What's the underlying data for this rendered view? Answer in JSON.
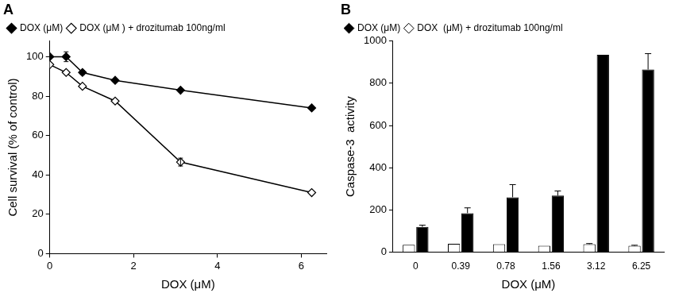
{
  "chart_data": [
    {
      "type": "line",
      "title": "A",
      "x": [
        0,
        0.39,
        0.78,
        1.56,
        3.12,
        6.25
      ],
      "x_label": "DOX (μM)",
      "y_label": "Cell survival (% of control)",
      "series": [
        {
          "name": "DOX (μM)",
          "color": "#000000",
          "marker": "diamond",
          "values": [
            100,
            100,
            92,
            88,
            83,
            74
          ],
          "errors": [
            0,
            2.5,
            1,
            0,
            0,
            0
          ]
        },
        {
          "name": "DOX (μM ) + drozitumab 100ng/ml",
          "color": "#ffffff",
          "marker": "diamond",
          "values": [
            96,
            92,
            85,
            77.5,
            46.5,
            31
          ],
          "errors": [
            0,
            0,
            0,
            0,
            2,
            0
          ]
        }
      ],
      "xlim": [
        0,
        6.6
      ],
      "xticks": [
        0,
        2,
        4,
        6
      ],
      "ylim": [
        0,
        108
      ],
      "yticks": [
        0,
        20,
        40,
        60,
        80,
        100
      ],
      "grid": false,
      "legend": "top"
    },
    {
      "type": "bar",
      "title": "B",
      "categories": [
        "0",
        "0.39",
        "0.78",
        "1.56",
        "3.12",
        "6.25"
      ],
      "x_label": "DOX (μM)",
      "y_label": "Caspase-3  activity",
      "series": [
        {
          "name": "DOX (μM)",
          "color": "#000000",
          "marker": "diamond",
          "values": [
            120,
            185,
            260,
            268,
            935,
            865
          ],
          "errors": [
            8,
            25,
            60,
            22,
            0,
            75
          ]
        },
        {
          "name": "DOX  (μM) + drozitumab 100ng/ml",
          "color": "#ffffff",
          "marker": "diamond",
          "values": [
            35,
            40,
            38,
            30,
            38,
            30
          ],
          "errors": [
            0,
            0,
            0,
            0,
            3,
            3
          ]
        }
      ],
      "ylim": [
        0,
        1000
      ],
      "yticks": [
        0,
        200,
        400,
        600,
        800,
        1000
      ],
      "grid": false,
      "legend": "top"
    }
  ]
}
